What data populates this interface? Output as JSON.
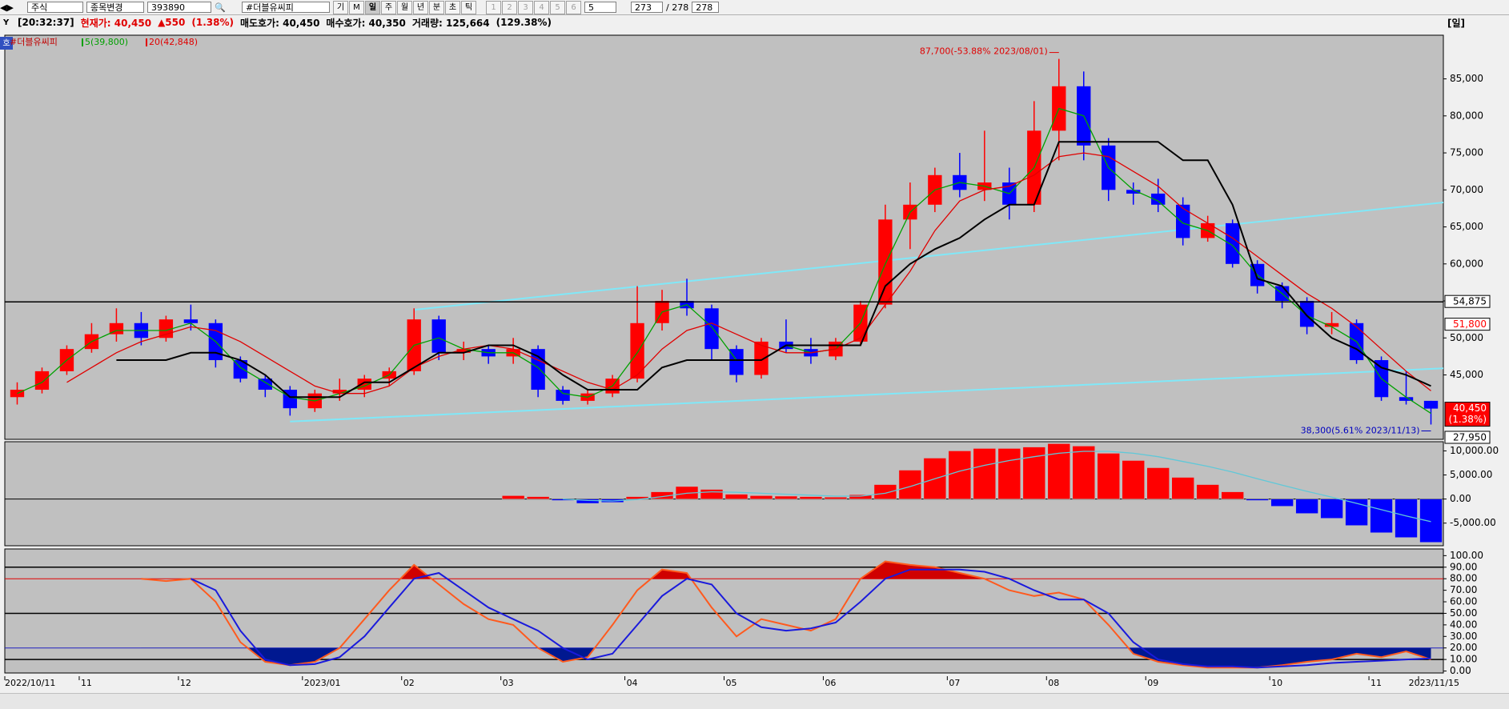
{
  "toolbar": {
    "market": "주식",
    "change": "종목변경",
    "code": "393890",
    "name": "#더블유씨피",
    "buttons": [
      "기",
      "M",
      "일",
      "주",
      "월",
      "년",
      "분",
      "초",
      "틱"
    ],
    "slots": [
      "1",
      "2",
      "3",
      "4",
      "5",
      "6"
    ],
    "slot": "5",
    "page": "273",
    "of": "/ 278",
    "total": "278"
  },
  "quote": {
    "time": "[20:32:37]",
    "price": "현재가: 40,450",
    "change": "▲550",
    "pct": "(1.38%)",
    "ask": "매도호가: 40,450",
    "bid": "매수호가: 40,350",
    "volume": "거래량: 125,664",
    "volume_pct": "(129.38%)",
    "period": "[일]",
    "badge": "호"
  },
  "chart_data": [
    {
      "type": "candlestick",
      "name": "#더블유씨피",
      "up_color": "#ff0000",
      "down_color": "#0000ff",
      "open": [
        42000,
        43000,
        45500,
        48500,
        50500,
        52000,
        50000,
        52500,
        52000,
        47000,
        44500,
        43000,
        40500,
        42500,
        43000,
        44500,
        45500,
        52500,
        48000,
        48500,
        47500,
        48500,
        43000,
        41500,
        42500,
        44500,
        52000,
        55000,
        54000,
        48500,
        45000,
        49500,
        48500,
        47500,
        49500,
        54500,
        66000,
        68000,
        72000,
        70000,
        71000,
        68000,
        78000,
        84000,
        76000,
        70000,
        69500,
        68000,
        63500,
        65500,
        60000,
        57000,
        55000,
        51500,
        52000,
        47000,
        42000,
        41500
      ],
      "high": [
        44000,
        46000,
        49000,
        52000,
        54000,
        53500,
        53000,
        54500,
        52500,
        47500,
        45000,
        43500,
        43000,
        44500,
        45000,
        46000,
        54000,
        53000,
        49500,
        49000,
        50000,
        49000,
        43500,
        43000,
        45000,
        57000,
        56500,
        58000,
        54500,
        49000,
        50000,
        52500,
        50000,
        50000,
        55000,
        68000,
        71000,
        73000,
        75000,
        78000,
        73000,
        82000,
        87700,
        86000,
        77000,
        71000,
        71500,
        69000,
        66500,
        66000,
        60500,
        57500,
        55500,
        53500,
        52500,
        47500,
        45500,
        41500
      ],
      "low": [
        41000,
        42500,
        45000,
        48000,
        49500,
        49000,
        49500,
        51000,
        46000,
        44000,
        42000,
        39500,
        40000,
        41500,
        42000,
        43500,
        45000,
        47000,
        47000,
        46500,
        46500,
        42000,
        41000,
        41000,
        42000,
        44000,
        51000,
        53000,
        47000,
        44000,
        44500,
        48000,
        46500,
        47000,
        49000,
        54000,
        62000,
        67000,
        69000,
        68500,
        66000,
        67000,
        74000,
        74000,
        68500,
        68000,
        67000,
        62500,
        63000,
        59500,
        56000,
        54000,
        50500,
        50500,
        46500,
        41500,
        41000,
        38300
      ],
      "close": [
        43000,
        45500,
        48500,
        50500,
        52000,
        50000,
        52500,
        52000,
        47000,
        44500,
        43000,
        40500,
        42500,
        43000,
        44500,
        45500,
        52500,
        48000,
        48500,
        47500,
        48500,
        43000,
        41500,
        42500,
        44500,
        52000,
        55000,
        54000,
        48500,
        45000,
        49500,
        48500,
        47500,
        49500,
        54500,
        66000,
        68000,
        72000,
        70000,
        71000,
        68000,
        78000,
        84000,
        76000,
        70000,
        69500,
        68000,
        63500,
        65500,
        60000,
        57000,
        55000,
        51500,
        52000,
        47000,
        42000,
        41500,
        40450
      ],
      "series": [
        {
          "name": "5(39,800)",
          "color": "#00a000",
          "values": [
            42500,
            44000,
            47000,
            49500,
            51000,
            51000,
            51000,
            52000,
            49500,
            46000,
            44000,
            42000,
            41500,
            42500,
            43500,
            45000,
            49000,
            50000,
            48500,
            48000,
            48000,
            46000,
            42500,
            42000,
            43500,
            48000,
            53500,
            54500,
            51500,
            47000,
            47000,
            49000,
            48000,
            48500,
            52000,
            60000,
            67000,
            70000,
            71000,
            70500,
            69500,
            73000,
            81000,
            80000,
            73000,
            70000,
            68500,
            65500,
            64500,
            62500,
            58500,
            56000,
            53000,
            51500,
            49500,
            44500,
            42000,
            39800
          ]
        },
        {
          "name": "20(42,848)",
          "color": "#e00000",
          "values": [
            null,
            null,
            44000,
            46000,
            48000,
            49500,
            50500,
            51500,
            51000,
            49500,
            47500,
            45500,
            43500,
            42500,
            42500,
            43500,
            46000,
            47500,
            48500,
            49000,
            48500,
            47000,
            45500,
            44000,
            43000,
            45000,
            48500,
            51000,
            52000,
            50500,
            49000,
            48000,
            48000,
            48500,
            50000,
            54500,
            59000,
            64500,
            68500,
            70000,
            70500,
            72000,
            74500,
            75000,
            74500,
            72500,
            70500,
            67500,
            65500,
            63500,
            61000,
            58500,
            56000,
            54000,
            51500,
            48500,
            45500,
            42848
          ]
        },
        {
          "color": "#000000",
          "values": [
            null,
            null,
            null,
            null,
            47000,
            47000,
            47000,
            48000,
            48000,
            47000,
            45000,
            42000,
            42000,
            42000,
            44000,
            44000,
            46000,
            48000,
            48000,
            49000,
            49000,
            47500,
            45000,
            43000,
            43000,
            43000,
            46000,
            47000,
            47000,
            47000,
            47000,
            49000,
            49000,
            49000,
            49000,
            57000,
            60000,
            62000,
            63500,
            66000,
            68000,
            68000,
            76500,
            76500,
            76500,
            76500,
            76500,
            74000,
            74000,
            68000,
            58000,
            57000,
            53000,
            50000,
            48500,
            46000,
            45000,
            43500
          ]
        }
      ],
      "trendlines": [
        {
          "color": "#80e8f8",
          "x": [
            11,
            57.5
          ],
          "y": [
            38700,
            45900
          ]
        },
        {
          "color": "#80e8f8",
          "x": [
            16,
            57.5
          ],
          "y": [
            53800,
            68300
          ]
        }
      ],
      "price_labels": [
        {
          "value": 54875,
          "label": "54,875",
          "color": "#000000",
          "bg": "#ffffff",
          "line": true
        },
        {
          "value": 51800,
          "label": "51,800",
          "color": "#ff0000",
          "bg": "#ffffff"
        },
        {
          "value": 40450,
          "label": "40,450",
          "sub": "(1.38%)",
          "color": "#ffffff",
          "bg": "#ff0000"
        }
      ],
      "bottom_label": "27,950",
      "annotations": [
        {
          "text": "87,700(-53.88% 2023/08/01)",
          "x": 42,
          "y": 87700,
          "color": "#e00000"
        },
        {
          "text": "38,300(5.61% 2023/11/13)",
          "x": 57,
          "y": 38300,
          "color": "#0000c0"
        }
      ],
      "ylim": [
        36300,
        90900
      ],
      "yticks": [
        {
          "value": 45000,
          "label": "45,000"
        },
        {
          "value": 50000,
          "label": "50,000"
        },
        {
          "value": 55000,
          "label": "55,000"
        },
        {
          "value": 60000,
          "label": "60,000"
        },
        {
          "value": 65000,
          "label": "65,000"
        },
        {
          "value": 70000,
          "label": "70,000"
        },
        {
          "value": 75000,
          "label": "75,000"
        },
        {
          "value": 80000,
          "label": "80,000"
        },
        {
          "value": 85000,
          "label": "85,000"
        }
      ]
    },
    {
      "type": "bar",
      "up_color": "#ff0000",
      "down_color": "#0000ff",
      "values": [
        null,
        null,
        null,
        null,
        null,
        null,
        null,
        null,
        null,
        null,
        null,
        null,
        null,
        null,
        null,
        null,
        null,
        null,
        null,
        null,
        700,
        500,
        -300,
        -900,
        -700,
        500,
        1500,
        2600,
        2000,
        1000,
        700,
        600,
        500,
        400,
        900,
        3000,
        6000,
        8500,
        10000,
        10500,
        10500,
        10800,
        11500,
        11000,
        9500,
        8000,
        6500,
        4500,
        3000,
        1500,
        -300,
        -1500,
        -3000,
        -4000,
        -5500,
        -7000,
        -8000,
        -9000
      ],
      "line": {
        "color": "#60c8d8",
        "values": [
          null,
          null,
          null,
          null,
          null,
          null,
          null,
          null,
          null,
          null,
          null,
          null,
          null,
          null,
          null,
          null,
          null,
          null,
          null,
          null,
          null,
          null,
          0,
          -300,
          -400,
          -100,
          500,
          1200,
          1500,
          1400,
          1200,
          1000,
          800,
          600,
          600,
          1200,
          2600,
          4200,
          5800,
          7000,
          8000,
          8800,
          9500,
          9900,
          9900,
          9500,
          8800,
          7800,
          6800,
          5600,
          4200,
          2900,
          1600,
          400,
          -900,
          -2200,
          -3500,
          -4700
        ]
      },
      "ylim": [
        -9700,
        11900
      ],
      "yticks": [
        {
          "value": 10000,
          "label": "10,000.00"
        },
        {
          "value": 5000,
          "label": "5,000.00"
        },
        {
          "value": 0,
          "label": "0.00"
        },
        {
          "value": -5000,
          "label": "-5,000.00"
        }
      ]
    },
    {
      "type": "line",
      "categories": [
        "2022/10/11",
        null,
        null,
        "11",
        null,
        null,
        null,
        "12",
        null,
        null,
        null,
        null,
        "2023/01",
        null,
        null,
        null,
        "02",
        null,
        null,
        null,
        "03",
        null,
        null,
        null,
        null,
        "04",
        null,
        null,
        null,
        "05",
        null,
        null,
        null,
        "06",
        null,
        null,
        null,
        null,
        "07",
        null,
        null,
        null,
        "08",
        null,
        null,
        null,
        "09",
        null,
        null,
        null,
        null,
        "10",
        null,
        null,
        null,
        "11",
        null,
        "2023/11/15"
      ],
      "series": [
        {
          "color": "#ff5a1e",
          "values": [
            null,
            null,
            null,
            null,
            null,
            80,
            78,
            80,
            60,
            25,
            8,
            5,
            8,
            20,
            45,
            70,
            92,
            75,
            58,
            45,
            40,
            20,
            8,
            12,
            40,
            70,
            88,
            85,
            55,
            30,
            45,
            40,
            35,
            45,
            80,
            95,
            92,
            90,
            85,
            80,
            70,
            65,
            68,
            62,
            40,
            15,
            8,
            5,
            3,
            3,
            3,
            5,
            8,
            10,
            15,
            12,
            17,
            10
          ]
        },
        {
          "color": "#1a1adc",
          "values": [
            null,
            null,
            null,
            null,
            null,
            null,
            null,
            80,
            70,
            35,
            10,
            5,
            6,
            12,
            30,
            55,
            80,
            85,
            70,
            55,
            45,
            35,
            20,
            10,
            15,
            40,
            65,
            80,
            75,
            50,
            38,
            35,
            37,
            42,
            60,
            80,
            88,
            88,
            88,
            86,
            80,
            70,
            62,
            62,
            50,
            25,
            10,
            6,
            4,
            4,
            3,
            4,
            5,
            7,
            8,
            9,
            10,
            11
          ]
        }
      ],
      "overbought": {
        "value": 80,
        "color": "#d00000"
      },
      "oversold": {
        "value": 20,
        "color": "#001890"
      },
      "hlines": [
        {
          "value": 90,
          "color": "#000000"
        },
        {
          "value": 80,
          "color": "#e00000"
        },
        {
          "value": 50,
          "color": "#000000"
        },
        {
          "value": 20,
          "color": "#2020c0"
        },
        {
          "value": 10,
          "color": "#000000"
        }
      ],
      "ylim": [
        -1.7,
        105.8
      ],
      "yticks": [
        {
          "value": 100,
          "label": "100.00"
        },
        {
          "value": 90,
          "label": "90.00"
        },
        {
          "value": 80,
          "label": "80.00"
        },
        {
          "value": 70,
          "label": "70.00"
        },
        {
          "value": 60,
          "label": "60.00"
        },
        {
          "value": 50,
          "label": "50.00"
        },
        {
          "value": 40,
          "label": "40.00"
        },
        {
          "value": 30,
          "label": "30.00"
        },
        {
          "value": 20,
          "label": "20.00"
        },
        {
          "value": 10,
          "label": "10.00"
        },
        {
          "value": 0,
          "label": "0.00"
        }
      ]
    }
  ]
}
